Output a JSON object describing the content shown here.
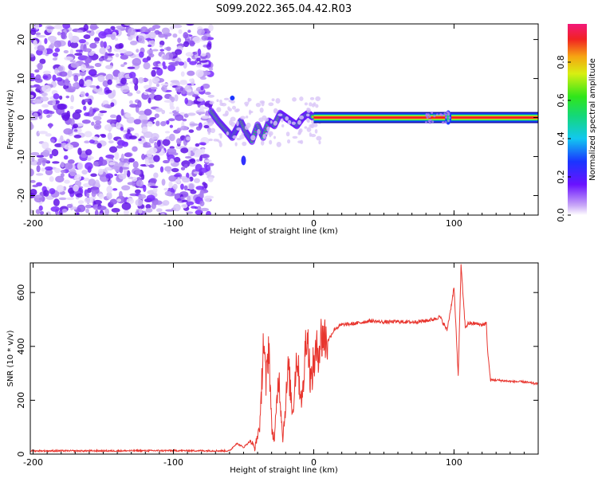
{
  "title": "S099.2022.365.04.42.R03",
  "colors": {
    "axis": "#000000",
    "snr_line": "#e8352e",
    "noise": "#7a2cff",
    "signal": "#e8352e"
  },
  "chart_data": [
    {
      "type": "heatmap",
      "title": "S099.2022.365.04.42.R03",
      "xlabel": "Height of straight line (km)",
      "ylabel": "Frequency (Hz)",
      "xlim": [
        -202,
        160
      ],
      "ylim": [
        -25,
        24
      ],
      "xticks": [
        -200,
        -100,
        0,
        100
      ],
      "yticks": [
        -20,
        -10,
        0,
        10,
        20
      ],
      "colorbar": {
        "label": "Normalized spectral amplitude",
        "range": [
          0.0,
          1.0
        ],
        "ticks": [
          "0.0",
          "0.2",
          "0.4",
          "0.6",
          "0.8"
        ]
      },
      "features": {
        "noise_region_x": [
          -202,
          -73
        ],
        "disturbed_region_x": [
          -73,
          0
        ],
        "steady_tone_x": [
          0,
          160
        ],
        "steady_tone_freq": 0,
        "disturbance_near_x": [
          80,
          97
        ]
      }
    },
    {
      "type": "line",
      "xlabel": "Height of straight line (km)",
      "ylabel": "SNR (10 * v/v)",
      "xlim": [
        -202,
        160
      ],
      "ylim": [
        0,
        710
      ],
      "xticks": [
        -200,
        -100,
        0,
        100
      ],
      "yticks": [
        0,
        200,
        400,
        600
      ],
      "series": [
        {
          "name": "SNR",
          "x": [
            -202,
            -150,
            -100,
            -60,
            -55,
            -50,
            -45,
            -42,
            -38,
            -36,
            -34,
            -32,
            -30,
            -28,
            -25,
            -22,
            -18,
            -15,
            -12,
            -10,
            -8,
            -5,
            -2,
            0,
            3,
            6,
            10,
            15,
            20,
            30,
            40,
            50,
            60,
            70,
            80,
            85,
            90,
            95,
            98,
            100,
            103,
            105,
            108,
            110,
            115,
            120,
            123,
            124,
            126,
            130,
            140,
            150,
            160
          ],
          "y": [
            12,
            12,
            13,
            12,
            40,
            25,
            50,
            20,
            120,
            430,
            260,
            420,
            100,
            50,
            300,
            60,
            320,
            150,
            380,
            250,
            200,
            480,
            260,
            340,
            390,
            440,
            420,
            465,
            480,
            485,
            495,
            490,
            492,
            490,
            495,
            500,
            510,
            460,
            550,
            620,
            290,
            700,
            470,
            485,
            485,
            480,
            485,
            380,
            275,
            275,
            270,
            268,
            260
          ]
        }
      ]
    }
  ]
}
